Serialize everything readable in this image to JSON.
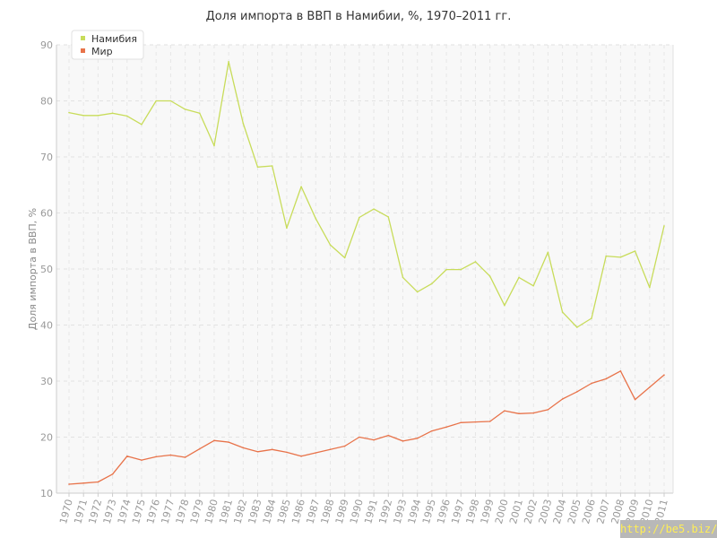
{
  "chart_data": {
    "type": "line",
    "title": "Доля импорта в ВВП в Намибии, %, 1970–2011 гг.",
    "ylabel": "Доля импорта в ВВП, %",
    "xlabel": "",
    "ylim": [
      10,
      90
    ],
    "yticks": [
      10,
      20,
      30,
      40,
      50,
      60,
      70,
      80,
      90
    ],
    "grid": true,
    "legend_position": "top-left",
    "x": [
      "1970",
      "1971",
      "1972",
      "1973",
      "1974",
      "1975",
      "1976",
      "1977",
      "1978",
      "1979",
      "1980",
      "1981",
      "1982",
      "1983",
      "1984",
      "1985",
      "1986",
      "1987",
      "1988",
      "1989",
      "1990",
      "1991",
      "1992",
      "1993",
      "1994",
      "1995",
      "1996",
      "1997",
      "1998",
      "1999",
      "2000",
      "2001",
      "2002",
      "2003",
      "2004",
      "2005",
      "2006",
      "2007",
      "2008",
      "2009",
      "2010",
      "2011"
    ],
    "series": [
      {
        "name": "Намибия",
        "color": "#c8dc5a",
        "values": [
          77.9,
          77.4,
          77.4,
          77.8,
          77.3,
          75.8,
          80.0,
          80.0,
          78.5,
          77.8,
          72.0,
          87.0,
          76.0,
          68.2,
          68.4,
          57.3,
          64.7,
          59.0,
          54.3,
          52.0,
          59.2,
          60.7,
          59.3,
          48.5,
          45.9,
          47.4,
          49.9,
          49.9,
          51.3,
          48.7,
          43.5,
          48.5,
          47.0,
          53.0,
          42.3,
          39.6,
          41.2,
          52.3,
          52.1,
          53.2,
          46.7,
          57.7
        ]
      },
      {
        "name": "Мир",
        "color": "#e8734a",
        "values": [
          11.6,
          11.8,
          12.0,
          13.4,
          16.6,
          15.9,
          16.5,
          16.8,
          16.4,
          17.9,
          19.4,
          19.1,
          18.1,
          17.4,
          17.8,
          17.3,
          16.6,
          17.2,
          17.8,
          18.4,
          20.0,
          19.5,
          20.3,
          19.3,
          19.8,
          21.1,
          21.8,
          22.6,
          22.7,
          22.8,
          24.7,
          24.2,
          24.3,
          24.9,
          26.8,
          28.1,
          29.6,
          30.4,
          31.8,
          26.7,
          28.9,
          31.1
        ]
      }
    ]
  },
  "watermark": "http://be5.biz/"
}
